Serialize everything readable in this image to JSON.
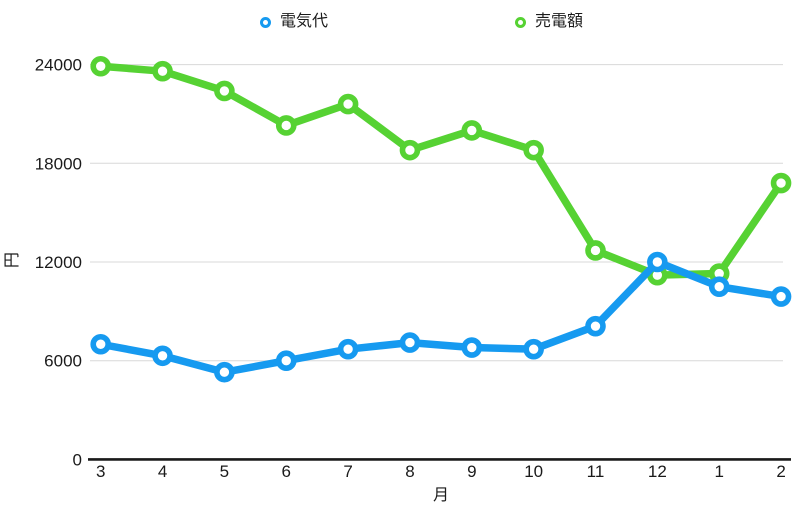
{
  "chart_data": {
    "type": "line",
    "title": "",
    "x_axis_label": "月",
    "y_axis_label": "円",
    "categories": [
      "3",
      "4",
      "5",
      "6",
      "7",
      "8",
      "9",
      "10",
      "11",
      "12",
      "1",
      "2"
    ],
    "y_ticks": [
      0,
      6000,
      12000,
      18000,
      24000
    ],
    "ylim": [
      0,
      24000
    ],
    "grid": "horizontal",
    "legend_position": "top",
    "series": [
      {
        "name": "電気代",
        "color": "#169af0",
        "values": [
          7000,
          6300,
          5300,
          6000,
          6700,
          7100,
          6800,
          6700,
          8100,
          12000,
          10500,
          9900
        ]
      },
      {
        "name": "売電額",
        "color": "#56d233",
        "values": [
          23900,
          23600,
          22400,
          20300,
          21600,
          18800,
          20000,
          18800,
          12700,
          11200,
          11300,
          16800
        ]
      }
    ],
    "colors": {
      "gridline": "#d8d8d8",
      "axis_line": "#1a1a1a",
      "tick_text": "#1a1a1a",
      "background": "#ffffff"
    }
  }
}
